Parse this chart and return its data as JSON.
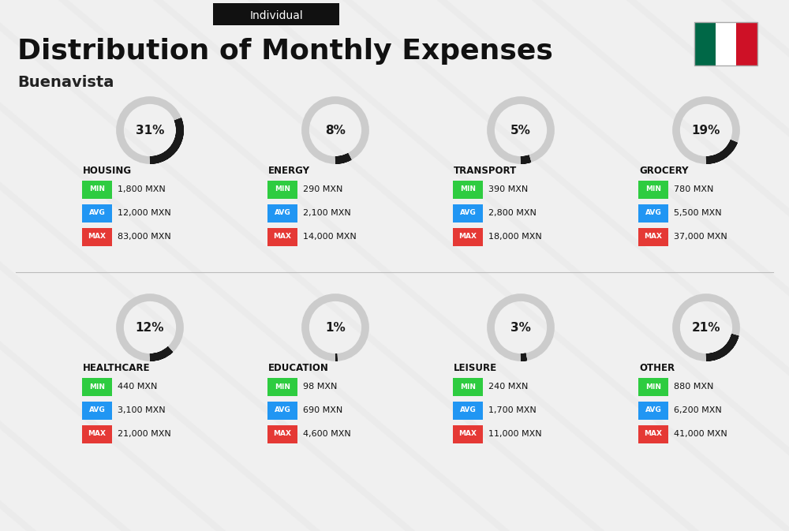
{
  "title": "Distribution of Monthly Expenses",
  "subtitle": "Buenavista",
  "tag": "Individual",
  "bg_color": "#f0f0f0",
  "categories": [
    {
      "name": "HOUSING",
      "pct": 31,
      "min_val": "1,800 MXN",
      "avg_val": "12,000 MXN",
      "max_val": "83,000 MXN",
      "col": 0,
      "row": 0
    },
    {
      "name": "ENERGY",
      "pct": 8,
      "min_val": "290 MXN",
      "avg_val": "2,100 MXN",
      "max_val": "14,000 MXN",
      "col": 1,
      "row": 0
    },
    {
      "name": "TRANSPORT",
      "pct": 5,
      "min_val": "390 MXN",
      "avg_val": "2,800 MXN",
      "max_val": "18,000 MXN",
      "col": 2,
      "row": 0
    },
    {
      "name": "GROCERY",
      "pct": 19,
      "min_val": "780 MXN",
      "avg_val": "5,500 MXN",
      "max_val": "37,000 MXN",
      "col": 3,
      "row": 0
    },
    {
      "name": "HEALTHCARE",
      "pct": 12,
      "min_val": "440 MXN",
      "avg_val": "3,100 MXN",
      "max_val": "21,000 MXN",
      "col": 0,
      "row": 1
    },
    {
      "name": "EDUCATION",
      "pct": 1,
      "min_val": "98 MXN",
      "avg_val": "690 MXN",
      "max_val": "4,600 MXN",
      "col": 1,
      "row": 1
    },
    {
      "name": "LEISURE",
      "pct": 3,
      "min_val": "240 MXN",
      "avg_val": "1,700 MXN",
      "max_val": "11,000 MXN",
      "col": 2,
      "row": 1
    },
    {
      "name": "OTHER",
      "pct": 21,
      "min_val": "880 MXN",
      "avg_val": "6,200 MXN",
      "max_val": "41,000 MXN",
      "col": 3,
      "row": 1
    }
  ],
  "min_color": "#2ecc40",
  "avg_color": "#2196f3",
  "max_color": "#e53935",
  "label_text_color": "#ffffff",
  "title_color": "#111111",
  "subtitle_color": "#222222",
  "tag_bg": "#111111",
  "tag_text": "#ffffff",
  "donut_dark": "#1a1a1a",
  "donut_light": "#cccccc"
}
